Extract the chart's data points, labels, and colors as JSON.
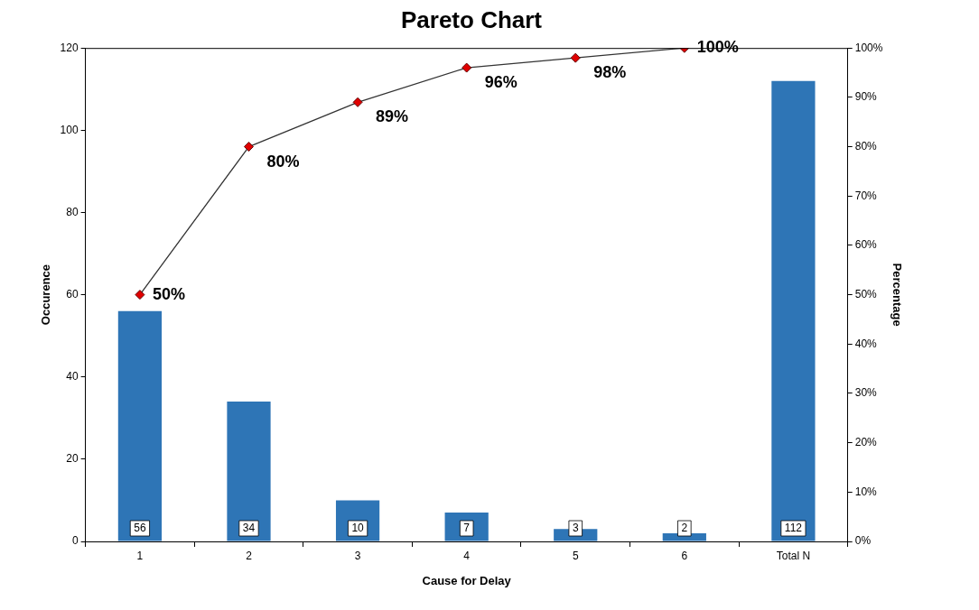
{
  "chart_data": {
    "type": "bar",
    "title": "Pareto Chart",
    "xlabel": "Cause for Delay",
    "ylabel": "Occurence",
    "y2label": "Percentage",
    "categories": [
      "1",
      "2",
      "3",
      "4",
      "5",
      "6",
      "Total N"
    ],
    "series": [
      {
        "color": "#2e75b6",
        "values": [
          56,
          34,
          10,
          7,
          3,
          2,
          112
        ],
        "value_labels": [
          "56",
          "34",
          "10",
          "7",
          "3",
          "2",
          "112"
        ]
      },
      {
        "type": "line",
        "axis": "y2",
        "color": "#333333",
        "colors": [
          "#e00000",
          "#e00000",
          "#e00000",
          "#e00000",
          "#e00000",
          "#e00000",
          null
        ],
        "marker": "diamond",
        "values": [
          50,
          80,
          89,
          96,
          98,
          100,
          null
        ],
        "value_labels": [
          "50%",
          "80%",
          "89%",
          "96%",
          "98%",
          "100%",
          null
        ]
      }
    ],
    "ylim": [
      0,
      120
    ],
    "yticks": [
      0,
      20,
      40,
      60,
      80,
      100,
      120
    ],
    "y2lim": [
      0,
      100
    ],
    "y2ticks": [
      {
        "value": 0,
        "label": "0%"
      },
      {
        "value": 10,
        "label": "10%"
      },
      {
        "value": 20,
        "label": "20%"
      },
      {
        "value": 30,
        "label": "30%"
      },
      {
        "value": 40,
        "label": "40%"
      },
      {
        "value": 50,
        "label": "50%"
      },
      {
        "value": 60,
        "label": "60%"
      },
      {
        "value": 70,
        "label": "70%"
      },
      {
        "value": 80,
        "label": "80%"
      },
      {
        "value": 90,
        "label": "90%"
      },
      {
        "value": 100,
        "label": "100%"
      }
    ],
    "grid": false,
    "legend": false
  }
}
